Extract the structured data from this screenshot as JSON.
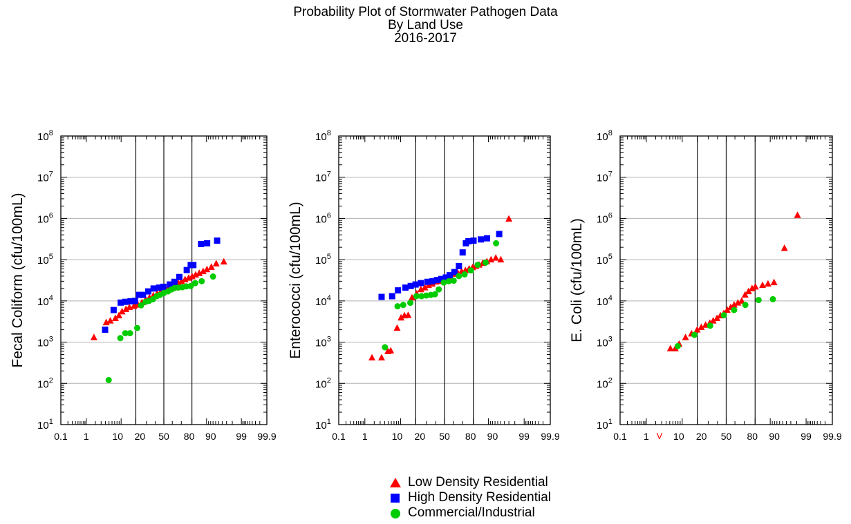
{
  "title_lines": [
    "Probability Plot of Stormwater Pathogen Data",
    "By Land Use",
    "2016-2017"
  ],
  "colors": {
    "ldr": "#ff0000",
    "hdr": "#0000ff",
    "ci": "#00cc00"
  },
  "legend": [
    {
      "key": "ldr",
      "label": "Low Density Residential",
      "shape": "triangle"
    },
    {
      "key": "hdr",
      "label": "High Density Residential",
      "shape": "square"
    },
    {
      "key": "ci",
      "label": "Commercial/Industrial",
      "shape": "circle"
    }
  ],
  "chart_data": [
    {
      "type": "scatter",
      "ylabel": "Fecal Coliform (cfu/100mL)",
      "x_scale": "probability",
      "y_scale": "log",
      "xlim": [
        0.1,
        99.9
      ],
      "ylim": [
        10,
        100000000
      ],
      "x_tick_labels": [
        "0.1",
        "1",
        "10",
        "20",
        "50",
        "80",
        "90",
        "99",
        "99.9"
      ],
      "y_tick_labels": [
        "10^1",
        "10^2",
        "10^3",
        "10^4",
        "10^5",
        "10^6",
        "10^7",
        "10^8"
      ],
      "series": [
        {
          "key": "ldr",
          "name": "Low Density Residential",
          "points": [
            [
              1.8,
              1300
            ],
            [
              4.2,
              3000
            ],
            [
              5.4,
              3300
            ],
            [
              7.3,
              3800
            ],
            [
              8.9,
              4400
            ],
            [
              10.5,
              5500
            ],
            [
              12.8,
              6300
            ],
            [
              15.1,
              7000
            ],
            [
              18.5,
              7500
            ],
            [
              21.9,
              8000
            ],
            [
              25.6,
              9200
            ],
            [
              29.3,
              10800
            ],
            [
              33.3,
              12000
            ],
            [
              37.7,
              13500
            ],
            [
              42.0,
              15000
            ],
            [
              46.2,
              16500
            ],
            [
              50.4,
              18000
            ],
            [
              54.6,
              19500
            ],
            [
              58.5,
              21500
            ],
            [
              62.5,
              23500
            ],
            [
              66.7,
              27000
            ],
            [
              70.2,
              30000
            ],
            [
              73.8,
              33000
            ],
            [
              77.2,
              36000
            ],
            [
              80.2,
              39000
            ],
            [
              83.0,
              43000
            ],
            [
              85.6,
              47000
            ],
            [
              88.1,
              52000
            ],
            [
              90.2,
              58000
            ],
            [
              92.3,
              66000
            ],
            [
              94.2,
              80000
            ],
            [
              96.4,
              89000
            ]
          ]
        },
        {
          "key": "hdr",
          "name": "High Density Residential",
          "points": [
            [
              3.9,
              2000
            ],
            [
              6.6,
              6000
            ],
            [
              9.8,
              9100
            ],
            [
              12.4,
              9500
            ],
            [
              15.9,
              9800
            ],
            [
              19.3,
              10000
            ],
            [
              22.8,
              14000
            ],
            [
              26.6,
              14000
            ],
            [
              32.0,
              17000
            ],
            [
              37.9,
              20000
            ],
            [
              44.4,
              21000
            ],
            [
              49.5,
              22000
            ],
            [
              57.2,
              25000
            ],
            [
              62.5,
              29000
            ],
            [
              67.9,
              38000
            ],
            [
              75.4,
              56000
            ],
            [
              79.0,
              74000
            ],
            [
              81.2,
              74000
            ],
            [
              86.8,
              240000
            ],
            [
              90.3,
              250000
            ],
            [
              94.5,
              290000
            ]
          ]
        },
        {
          "key": "ci",
          "name": "Commercial/Industrial",
          "points": [
            [
              4.9,
              120
            ],
            [
              9.6,
              1250
            ],
            [
              12.4,
              1650
            ],
            [
              15.5,
              1650
            ],
            [
              21.2,
              2200
            ],
            [
              24.8,
              7800
            ],
            [
              29.3,
              9500
            ],
            [
              32.9,
              10000
            ],
            [
              37.1,
              11000
            ],
            [
              41.6,
              13000
            ],
            [
              45.5,
              14000
            ],
            [
              50.0,
              15500
            ],
            [
              55.0,
              17000
            ],
            [
              59.1,
              19000
            ],
            [
              62.5,
              20500
            ],
            [
              66.7,
              21000
            ],
            [
              71.1,
              21500
            ],
            [
              75.0,
              22500
            ],
            [
              79.0,
              23000
            ],
            [
              82.7,
              27000
            ],
            [
              87.2,
              30000
            ],
            [
              93.0,
              39000
            ]
          ]
        }
      ]
    },
    {
      "type": "scatter",
      "ylabel": "Enterococci (cfu/100mL)",
      "x_scale": "probability",
      "y_scale": "log",
      "xlim": [
        0.1,
        99.9
      ],
      "ylim": [
        10,
        100000000
      ],
      "x_tick_labels": [
        "0.1",
        "1",
        "10",
        "20",
        "50",
        "80",
        "90",
        "99",
        "99.9"
      ],
      "y_tick_labels": [
        "10^1",
        "10^2",
        "10^3",
        "10^4",
        "10^5",
        "10^6",
        "10^7",
        "10^8"
      ],
      "series": [
        {
          "key": "ldr",
          "name": "Low Density Residential",
          "points": [
            [
              1.7,
              420
            ],
            [
              3.3,
              420
            ],
            [
              4.9,
              600
            ],
            [
              5.8,
              620
            ],
            [
              8.3,
              2200
            ],
            [
              10.2,
              3900
            ],
            [
              12.1,
              4400
            ],
            [
              14.4,
              4500
            ],
            [
              17.1,
              12000
            ],
            [
              20.8,
              15000
            ],
            [
              24.5,
              19000
            ],
            [
              28.3,
              21000
            ],
            [
              32.0,
              24000
            ],
            [
              36.0,
              26000
            ],
            [
              40.0,
              29000
            ],
            [
              44.0,
              30000
            ],
            [
              48.1,
              32000
            ],
            [
              52.2,
              35000
            ],
            [
              56.4,
              40000
            ],
            [
              60.6,
              45000
            ],
            [
              65.0,
              48000
            ],
            [
              69.1,
              52000
            ],
            [
              72.9,
              55000
            ],
            [
              76.4,
              60000
            ],
            [
              79.4,
              65000
            ],
            [
              82.0,
              70000
            ],
            [
              84.4,
              75000
            ],
            [
              86.8,
              83000
            ],
            [
              89.2,
              90000
            ],
            [
              91.3,
              100000
            ],
            [
              93.3,
              110000
            ],
            [
              95.0,
              100000
            ],
            [
              97.0,
              980000
            ]
          ]
        },
        {
          "key": "hdr",
          "name": "High Density Residential",
          "points": [
            [
              3.3,
              12500
            ],
            [
              6.3,
              13000
            ],
            [
              8.7,
              18000
            ],
            [
              12.7,
              21000
            ],
            [
              16.2,
              23000
            ],
            [
              19.9,
              25000
            ],
            [
              24.5,
              27000
            ],
            [
              30.9,
              29000
            ],
            [
              36.3,
              30000
            ],
            [
              41.3,
              32000
            ],
            [
              46.2,
              34000
            ],
            [
              51.6,
              37000
            ],
            [
              56.0,
              42000
            ],
            [
              61.4,
              50000
            ],
            [
              66.3,
              70000
            ],
            [
              70.2,
              150000
            ],
            [
              73.4,
              250000
            ],
            [
              75.8,
              280000
            ],
            [
              80.2,
              290000
            ],
            [
              85.6,
              310000
            ],
            [
              89.3,
              330000
            ],
            [
              94.5,
              420000
            ]
          ]
        },
        {
          "key": "ci",
          "name": "Commercial/Industrial",
          "points": [
            [
              4.1,
              750
            ],
            [
              8.5,
              7400
            ],
            [
              11.4,
              8000
            ],
            [
              15.9,
              9000
            ],
            [
              20.6,
              13000
            ],
            [
              25.1,
              13000
            ],
            [
              29.7,
              13500
            ],
            [
              34.5,
              14000
            ],
            [
              39.0,
              14500
            ],
            [
              43.3,
              19000
            ],
            [
              49.2,
              28000
            ],
            [
              55.0,
              30000
            ],
            [
              60.6,
              31000
            ],
            [
              66.3,
              40000
            ],
            [
              72.2,
              44000
            ],
            [
              78.0,
              55000
            ],
            [
              83.4,
              75000
            ],
            [
              88.5,
              85000
            ],
            [
              93.4,
              250000
            ]
          ]
        }
      ]
    },
    {
      "type": "scatter",
      "ylabel": "E. Coli (cfu/100mL)",
      "x_scale": "probability",
      "y_scale": "log",
      "xlim": [
        0.1,
        99.9
      ],
      "ylim": [
        10,
        100000000
      ],
      "x_tick_labels": [
        "0.1",
        "1",
        "10",
        "20",
        "50",
        "80",
        "90",
        "99",
        "99.9"
      ],
      "y_tick_labels": [
        "10^1",
        "10^2",
        "10^3",
        "10^4",
        "10^5",
        "10^6",
        "10^7",
        "10^8"
      ],
      "annotation": {
        "text": "V",
        "x": 2.6,
        "color": "#ff0000"
      },
      "series": [
        {
          "key": "ldr",
          "name": "Low Density Residential",
          "points": [
            [
              5.2,
              700
            ],
            [
              6.9,
              700
            ],
            [
              8.5,
              900
            ],
            [
              11.8,
              1300
            ],
            [
              15.6,
              1600
            ],
            [
              19.9,
              2000
            ],
            [
              23.4,
              2300
            ],
            [
              27.4,
              2600
            ],
            [
              31.6,
              2900
            ],
            [
              35.2,
              3300
            ],
            [
              39.4,
              3800
            ],
            [
              43.3,
              4400
            ],
            [
              47.2,
              5000
            ],
            [
              51.2,
              6000
            ],
            [
              55.2,
              7000
            ],
            [
              59.1,
              8000
            ],
            [
              63.3,
              9000
            ],
            [
              67.4,
              10000
            ],
            [
              70.9,
              14000
            ],
            [
              74.2,
              17000
            ],
            [
              77.4,
              20000
            ],
            [
              80.2,
              22000
            ],
            [
              85.5,
              24000
            ],
            [
              88.8,
              26000
            ],
            [
              91.8,
              28000
            ],
            [
              95.5,
              190000
            ],
            [
              98.1,
              1200000
            ]
          ]
        },
        {
          "key": "ci",
          "name": "Commercial/Industrial",
          "points": [
            [
              7.9,
              800
            ],
            [
              17.7,
              1500
            ],
            [
              32.0,
              2500
            ],
            [
              47.2,
              4500
            ],
            [
              59.1,
              6000
            ],
            [
              71.1,
              8000
            ],
            [
              82.7,
              10500
            ],
            [
              91.3,
              11000
            ]
          ]
        }
      ]
    }
  ]
}
